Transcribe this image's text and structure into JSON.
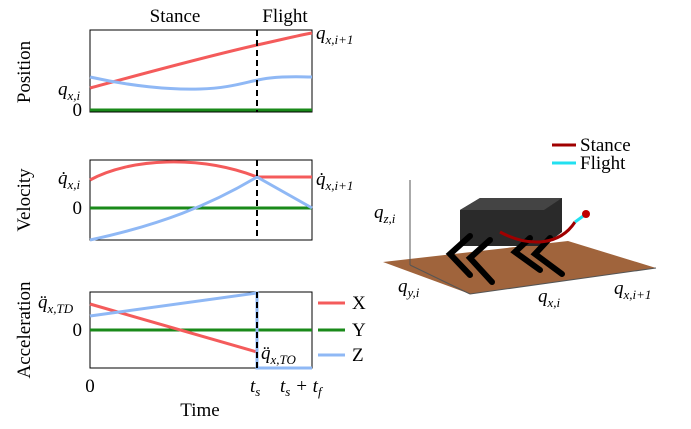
{
  "phases": {
    "stance": "Stance",
    "flight": "Flight"
  },
  "panels": [
    {
      "title": "Position",
      "zero": "0",
      "left_label": {
        "main": "q",
        "sub": "x,i"
      },
      "right_label": {
        "main": "q",
        "sub": "x,i+1"
      }
    },
    {
      "title": "Velocity",
      "zero": "0",
      "left_label": {
        "main": "q̇",
        "sub": "x,i"
      },
      "right_label": {
        "main": "q̇",
        "sub": "x,i+1"
      }
    },
    {
      "title": "Acceleration",
      "zero": "0",
      "left_label": {
        "main": "q̈",
        "sub": "x,TD"
      },
      "right_label": {
        "main": "q̈",
        "sub": "x,TO"
      }
    }
  ],
  "time_axis": {
    "title": "Time",
    "start": "0",
    "switch": {
      "main": "t",
      "sub": "s"
    },
    "end": {
      "main": "t",
      "sub": "s",
      "rest": " + t",
      "sub2": "f"
    }
  },
  "legend": [
    "X",
    "Y",
    "Z"
  ],
  "robot": {
    "legend": [
      "Stance",
      "Flight"
    ],
    "labels": [
      {
        "main": "q",
        "sub": "z,i"
      },
      {
        "main": "q",
        "sub": "y,i"
      },
      {
        "main": "q",
        "sub": "x,i"
      },
      {
        "main": "q",
        "sub": "x,i+1"
      }
    ]
  }
}
